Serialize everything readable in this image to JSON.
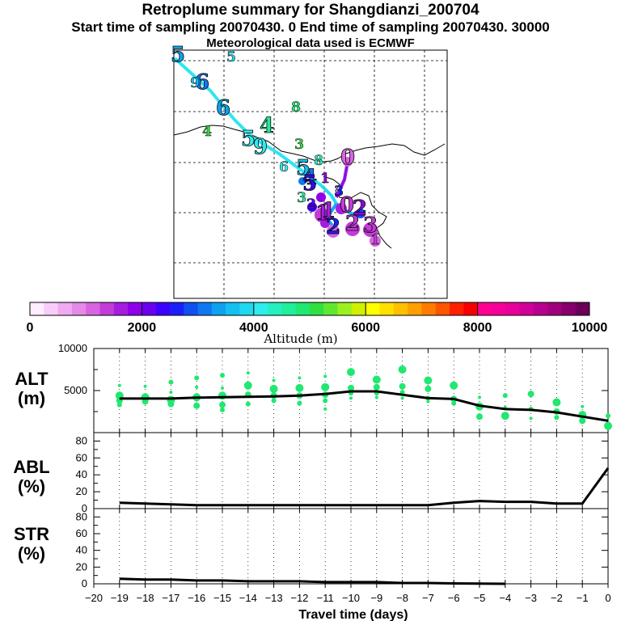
{
  "header": {
    "title": "Retroplume summary for Shangdianzi_200704",
    "subtitle": "Start time of sampling 20070430.    0     End time of sampling 20070430. 30000",
    "met_line": "Meteorological data used is ECMWF"
  },
  "colorbar": {
    "title": "Altitude  (m)",
    "min": 0,
    "max": 10000,
    "tick_values": [
      0,
      2000,
      4000,
      6000,
      8000,
      10000
    ],
    "tick_labels": [
      "0",
      "2000",
      "4000",
      "6000",
      "8000",
      "10000"
    ],
    "colors": [
      "#ffeeff",
      "#f8cdf8",
      "#f0aaf0",
      "#e58ae8",
      "#d865e0",
      "#c43cd8",
      "#a51ee0",
      "#8d00e8",
      "#6a00ee",
      "#3c00ff",
      "#1c20f8",
      "#0f50f0",
      "#0f78f0",
      "#10a0f0",
      "#15c0f0",
      "#20d8f0",
      "#30ecec",
      "#25f0c0",
      "#20ee9a",
      "#20e870",
      "#30e040",
      "#60e830",
      "#9cf020",
      "#d0f000",
      "#ffff00",
      "#ffe000",
      "#ffc000",
      "#ff9f00",
      "#ff7c00",
      "#ff5500",
      "#ff2000",
      "#f80000",
      "#ff0090",
      "#f5009a",
      "#e8009a",
      "#d0009a",
      "#b80090",
      "#a0007e",
      "#85006c",
      "#6a0058"
    ]
  },
  "map": {
    "trajectory": {
      "color_legs": [
        "#30e5f0",
        "#28d8f0",
        "#18b8f0",
        "#1ca0f8",
        "#8f10e8"
      ],
      "day_labels": [
        {
          "day": "5",
          "alt": 3300,
          "size": "big"
        },
        {
          "day": "5",
          "alt": 3900,
          "size": "small"
        },
        {
          "day": "6",
          "alt": 3200,
          "size": "big"
        },
        {
          "day": "9",
          "alt": 3500,
          "size": "small"
        },
        {
          "day": "6",
          "alt": 3400,
          "size": "big"
        },
        {
          "day": "8",
          "alt": 4800,
          "size": "small"
        },
        {
          "day": "4",
          "alt": 5200,
          "size": "small"
        },
        {
          "day": "4",
          "alt": 4700,
          "size": "big"
        },
        {
          "day": "5",
          "alt": 4200,
          "size": "big"
        },
        {
          "day": "9",
          "alt": 4000,
          "size": "big"
        },
        {
          "day": "3",
          "alt": 5200,
          "size": "small"
        },
        {
          "day": "8",
          "alt": 4400,
          "size": "small"
        },
        {
          "day": "0",
          "alt": 1200,
          "size": "big"
        },
        {
          "day": "6",
          "alt": 4200,
          "size": "small"
        },
        {
          "day": "5",
          "alt": 3600,
          "size": "big"
        },
        {
          "day": "4",
          "alt": 3200,
          "size": "big"
        },
        {
          "day": "1",
          "alt": 1900,
          "size": "small"
        },
        {
          "day": "3",
          "alt": 2700,
          "size": "small"
        },
        {
          "day": "3",
          "alt": 4500,
          "size": "small"
        },
        {
          "day": "2",
          "alt": 2200,
          "size": "small"
        },
        {
          "day": "5",
          "alt": 2300,
          "size": "big"
        },
        {
          "day": "1",
          "alt": 1600,
          "size": "big"
        },
        {
          "day": "2",
          "alt": 2500,
          "size": "big"
        },
        {
          "day": "1",
          "alt": 1500,
          "size": "big"
        },
        {
          "day": "0",
          "alt": 1400,
          "size": "big"
        },
        {
          "day": "2",
          "alt": 1300,
          "size": "big"
        },
        {
          "day": "2",
          "alt": 1800,
          "size": "big"
        },
        {
          "day": "3",
          "alt": 1350,
          "size": "big"
        },
        {
          "day": "1",
          "alt": 1300,
          "size": "small"
        }
      ]
    }
  },
  "panels": {
    "alt": {
      "line1": "ALT",
      "line2": "(m)"
    },
    "abl": {
      "line1": "ABL",
      "line2": "(%)"
    },
    "str": {
      "line1": "STR",
      "line2": "(%)"
    }
  },
  "chart_data": [
    {
      "type": "line",
      "title": "ALT (m)",
      "xlabel": "Travel time (days)",
      "ylabel": "ALT (m)",
      "xlim": [
        -20,
        0
      ],
      "ylim": [
        0,
        10000
      ],
      "x_ticks": [
        -20,
        -19,
        -18,
        -17,
        -16,
        -15,
        -14,
        -13,
        -12,
        -11,
        -10,
        -9,
        -8,
        -7,
        -6,
        -5,
        -4,
        -3,
        -2,
        -1,
        0
      ],
      "y_ticks": [
        5000,
        10000
      ],
      "series": [
        {
          "name": "median",
          "x": [
            -19,
            -18,
            -17,
            -16,
            -15,
            -14,
            -13,
            -12,
            -11,
            -10,
            -9,
            -8,
            -7,
            -6,
            -5,
            -4,
            -3,
            -2,
            -1,
            0
          ],
          "values": [
            4050,
            4050,
            4050,
            4150,
            4200,
            4250,
            4300,
            4400,
            4600,
            4900,
            4900,
            4500,
            4100,
            4000,
            3200,
            2800,
            2700,
            2400,
            1900,
            1400
          ]
        },
        {
          "name": "particles",
          "type": "scatter",
          "color": "#20e870",
          "x": [
            -19,
            -19,
            -19,
            -19,
            -18,
            -18,
            -18,
            -17,
            -17,
            -17,
            -17,
            -16,
            -16,
            -16,
            -16,
            -15,
            -15,
            -15,
            -15,
            -15,
            -14,
            -14,
            -14,
            -14,
            -13,
            -13,
            -13,
            -13,
            -12,
            -12,
            -12,
            -12,
            -11,
            -11,
            -11,
            -11,
            -11,
            -10,
            -10,
            -10,
            -10,
            -9,
            -9,
            -9,
            -9,
            -8,
            -8,
            -8,
            -8,
            -7,
            -7,
            -7,
            -7,
            -6,
            -6,
            -6,
            -5,
            -5,
            -5,
            -4,
            -4,
            -4,
            -3,
            -3,
            -3,
            -2,
            -2,
            -2,
            -1,
            -1,
            -1,
            0,
            0,
            0
          ],
          "values": [
            5600,
            4400,
            3800,
            3300,
            5500,
            4200,
            3700,
            6000,
            4800,
            3900,
            3400,
            6500,
            5400,
            4200,
            3200,
            6800,
            5300,
            4400,
            3300,
            2700,
            7100,
            5600,
            4500,
            3400,
            6200,
            5200,
            4400,
            3800,
            6500,
            5300,
            4400,
            3500,
            6700,
            5400,
            4500,
            3800,
            2800,
            7200,
            5300,
            4700,
            4100,
            6300,
            5400,
            4700,
            4200,
            7500,
            5500,
            4800,
            4100,
            6200,
            5200,
            4100,
            3700,
            5600,
            4000,
            3500,
            4200,
            3100,
            1900,
            4400,
            3000,
            2000,
            4600,
            2800,
            1700,
            3600,
            2500,
            1800,
            3100,
            2100,
            1400,
            2000,
            1200,
            800
          ]
        }
      ]
    },
    {
      "type": "line",
      "title": "ABL (%)",
      "xlabel": "Travel time (days)",
      "ylabel": "ABL (%)",
      "xlim": [
        -20,
        0
      ],
      "ylim": [
        0,
        90
      ],
      "y_ticks": [
        0,
        20,
        40,
        60,
        80
      ],
      "series": [
        {
          "name": "ABL",
          "x": [
            -19,
            -18,
            -17,
            -16,
            -15,
            -14,
            -13,
            -12,
            -11,
            -10,
            -9,
            -8,
            -7,
            -6,
            -5,
            -4,
            -3,
            -2,
            -1,
            0
          ],
          "values": [
            7,
            6,
            5,
            4,
            4,
            4,
            4,
            4,
            4,
            4,
            4,
            4,
            4,
            7,
            9,
            8,
            8,
            6,
            6,
            48
          ]
        }
      ]
    },
    {
      "type": "line",
      "title": "STR (%)",
      "xlabel": "Travel time (days)",
      "ylabel": "STR (%)",
      "xlim": [
        -20,
        0
      ],
      "ylim": [
        0,
        90
      ],
      "y_ticks": [
        0,
        20,
        40,
        60,
        80
      ],
      "series": [
        {
          "name": "STR",
          "x": [
            -19,
            -18,
            -17,
            -16,
            -15,
            -14,
            -13,
            -12,
            -11,
            -10,
            -9,
            -8,
            -7,
            -6,
            -5,
            -4
          ],
          "values": [
            6,
            5,
            5,
            4,
            4,
            3,
            3,
            3,
            2,
            2,
            2,
            1,
            1,
            0.5,
            0.3,
            0
          ]
        }
      ]
    }
  ]
}
